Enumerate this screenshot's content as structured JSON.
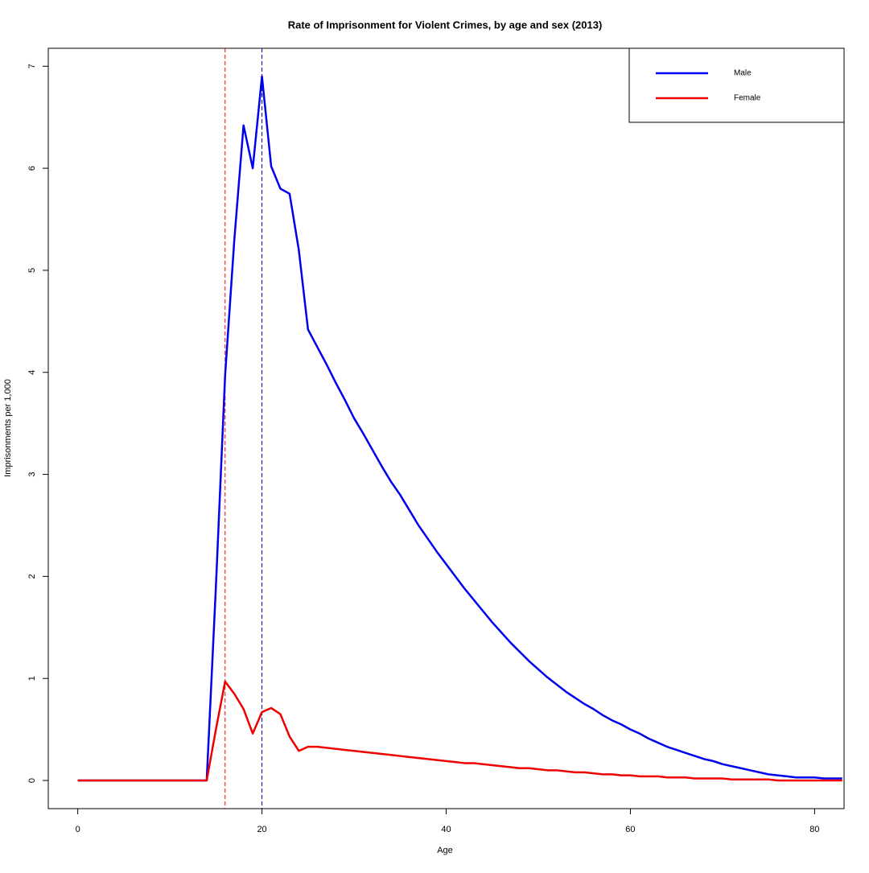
{
  "chart_data": {
    "type": "line",
    "title": "Rate of Imprisonment for Violent Crimes, by age and sex (2013)",
    "x_label": "Age",
    "y_label": "Imprisonments per 1,000",
    "x": [
      0,
      1,
      2,
      3,
      4,
      5,
      6,
      7,
      8,
      9,
      10,
      11,
      12,
      13,
      14,
      15,
      16,
      17,
      18,
      19,
      20,
      21,
      22,
      23,
      24,
      25,
      26,
      27,
      28,
      29,
      30,
      31,
      32,
      33,
      34,
      35,
      36,
      37,
      38,
      39,
      40,
      41,
      42,
      43,
      44,
      45,
      46,
      47,
      48,
      49,
      50,
      51,
      52,
      53,
      54,
      55,
      56,
      57,
      58,
      59,
      60,
      61,
      62,
      63,
      64,
      65,
      66,
      67,
      68,
      69,
      70,
      71,
      72,
      73,
      74,
      75,
      76,
      77,
      78,
      79,
      80,
      81,
      82,
      83
    ],
    "series": [
      {
        "name": "Male",
        "color": "#0000ee",
        "values": [
          0,
          0,
          0,
          0,
          0,
          0,
          0,
          0,
          0,
          0,
          0,
          0,
          0,
          0,
          0,
          1.9,
          3.97,
          5.3,
          6.42,
          6.0,
          6.9,
          6.02,
          5.8,
          5.75,
          5.2,
          4.42,
          4.25,
          4.08,
          3.9,
          3.73,
          3.55,
          3.4,
          3.24,
          3.08,
          2.93,
          2.8,
          2.65,
          2.5,
          2.37,
          2.24,
          2.12,
          2.0,
          1.88,
          1.77,
          1.66,
          1.55,
          1.45,
          1.35,
          1.26,
          1.17,
          1.09,
          1.01,
          0.94,
          0.87,
          0.81,
          0.75,
          0.7,
          0.64,
          0.59,
          0.55,
          0.5,
          0.46,
          0.41,
          0.37,
          0.33,
          0.3,
          0.27,
          0.24,
          0.21,
          0.19,
          0.16,
          0.14,
          0.12,
          0.1,
          0.08,
          0.06,
          0.05,
          0.04,
          0.03,
          0.03,
          0.03,
          0.02,
          0.02,
          0.02
        ]
      },
      {
        "name": "Female",
        "color": "#ee0000",
        "values": [
          0,
          0,
          0,
          0,
          0,
          0,
          0,
          0,
          0,
          0,
          0,
          0,
          0,
          0,
          0,
          0.5,
          0.97,
          0.85,
          0.7,
          0.46,
          0.67,
          0.71,
          0.65,
          0.43,
          0.29,
          0.33,
          0.33,
          0.32,
          0.31,
          0.3,
          0.29,
          0.28,
          0.27,
          0.26,
          0.25,
          0.24,
          0.23,
          0.22,
          0.21,
          0.2,
          0.19,
          0.18,
          0.17,
          0.17,
          0.16,
          0.15,
          0.14,
          0.13,
          0.12,
          0.12,
          0.11,
          0.1,
          0.1,
          0.09,
          0.08,
          0.08,
          0.07,
          0.06,
          0.06,
          0.05,
          0.05,
          0.04,
          0.04,
          0.04,
          0.03,
          0.03,
          0.03,
          0.02,
          0.02,
          0.02,
          0.02,
          0.01,
          0.01,
          0.01,
          0.01,
          0.01,
          0,
          0,
          0,
          0,
          0,
          0,
          0,
          0
        ]
      }
    ],
    "vlines": [
      {
        "x": 16,
        "color": "#ee0000"
      },
      {
        "x": 20,
        "color": "#0000aa"
      }
    ],
    "xlim": [
      -3.2,
      83.2
    ],
    "xticks": [
      0,
      20,
      40,
      60,
      80
    ],
    "ylim": [
      -0.276,
      7.176
    ],
    "yticks": [
      0,
      1,
      2,
      3,
      4,
      5,
      6,
      7
    ],
    "legend": "topright"
  }
}
